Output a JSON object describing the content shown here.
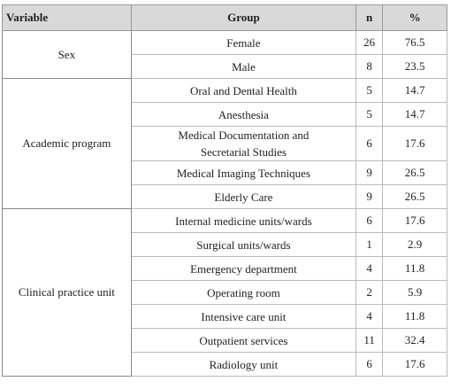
{
  "table": {
    "header": [
      "Variable",
      "Group",
      "n",
      "%"
    ],
    "groups": [
      {
        "variable": "Sex",
        "rows": [
          [
            "Female",
            26,
            76.5
          ],
          [
            "Male",
            8,
            23.5
          ]
        ]
      },
      {
        "variable": "Academic program",
        "rows": [
          [
            "Oral and Dental Health",
            5,
            14.7
          ],
          [
            "Anesthesia",
            5,
            14.7
          ],
          [
            "Medical Documentation and Secretarial Studies",
            6,
            17.6
          ],
          [
            "Medical Imaging Techniques",
            9,
            26.5
          ],
          [
            "Elderly Care",
            9,
            26.5
          ]
        ]
      },
      {
        "variable": "Clinical practice unit",
        "rows": [
          [
            "Internal medicine units/wards",
            6,
            17.6
          ],
          [
            "Surgical units/wards",
            1,
            2.9
          ],
          [
            "Emergency department",
            4,
            11.8
          ],
          [
            "Operating room",
            2,
            5.9
          ],
          [
            "Intensive care unit",
            4,
            11.8
          ],
          [
            "Outpatient services",
            11,
            32.4
          ],
          [
            "Radiology unit",
            6,
            17.6
          ]
        ]
      }
    ]
  }
}
